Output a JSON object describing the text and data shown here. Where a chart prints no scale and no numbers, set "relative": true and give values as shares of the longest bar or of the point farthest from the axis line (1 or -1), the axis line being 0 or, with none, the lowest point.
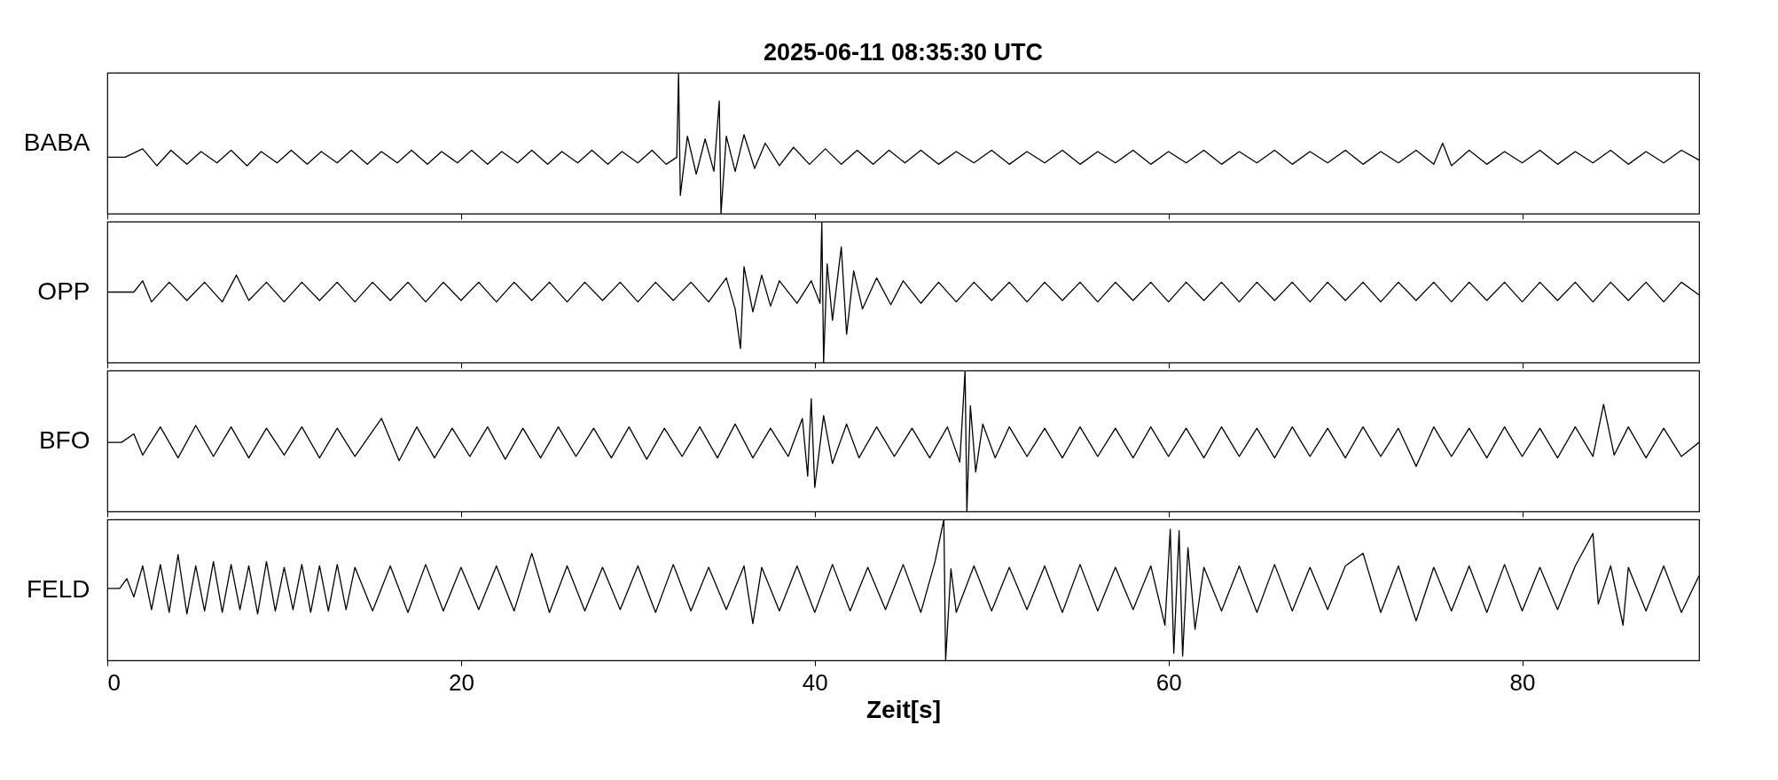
{
  "chart_data": [
    {
      "type": "line",
      "title": "2025-06-11  08:35:30 UTC",
      "ylabel": "BABA",
      "relative": true,
      "color": "#000000",
      "xlim": [
        0,
        90
      ],
      "xticks": [
        0,
        20,
        40,
        60,
        80
      ],
      "tick_labels": false,
      "x": [
        0,
        1,
        2,
        2.8,
        3.6,
        4.5,
        5.3,
        6.2,
        7,
        7.9,
        8.7,
        9.6,
        10.4,
        11.3,
        12.1,
        13,
        13.8,
        14.7,
        15.5,
        16.4,
        17.2,
        18.1,
        18.9,
        19.8,
        20.6,
        21.5,
        22.3,
        23.2,
        24,
        24.9,
        25.7,
        26.6,
        27.4,
        28.3,
        29.1,
        30,
        30.8,
        31.6,
        32.2,
        32.3,
        32.4,
        32.8,
        33.3,
        33.8,
        34.3,
        34.6,
        34.7,
        35,
        35.5,
        36,
        36.6,
        37.2,
        38,
        38.8,
        39.7,
        40.6,
        41.5,
        42.4,
        43.3,
        44.2,
        45.1,
        46,
        47,
        48,
        49,
        50,
        51,
        52,
        53,
        54,
        55,
        56,
        57,
        58,
        59,
        60,
        61,
        62,
        63,
        64,
        65,
        66,
        67,
        68,
        69,
        70,
        71,
        72,
        73,
        74,
        75,
        75.5,
        76,
        77,
        78,
        79,
        80,
        81,
        82,
        83,
        84,
        85,
        86,
        87,
        88,
        89,
        90
      ],
      "values": [
        0.4,
        0.4,
        0.46,
        0.34,
        0.45,
        0.35,
        0.44,
        0.36,
        0.45,
        0.34,
        0.44,
        0.36,
        0.45,
        0.35,
        0.44,
        0.36,
        0.45,
        0.35,
        0.44,
        0.36,
        0.45,
        0.35,
        0.44,
        0.36,
        0.45,
        0.35,
        0.44,
        0.36,
        0.45,
        0.35,
        0.44,
        0.36,
        0.45,
        0.35,
        0.44,
        0.36,
        0.45,
        0.35,
        0.4,
        1.0,
        0.13,
        0.55,
        0.28,
        0.53,
        0.3,
        0.8,
        0,
        0.55,
        0.3,
        0.56,
        0.32,
        0.5,
        0.34,
        0.47,
        0.35,
        0.46,
        0.35,
        0.45,
        0.35,
        0.45,
        0.36,
        0.45,
        0.35,
        0.44,
        0.36,
        0.45,
        0.35,
        0.44,
        0.36,
        0.45,
        0.35,
        0.44,
        0.36,
        0.45,
        0.35,
        0.44,
        0.36,
        0.45,
        0.35,
        0.44,
        0.36,
        0.45,
        0.35,
        0.44,
        0.36,
        0.45,
        0.35,
        0.44,
        0.36,
        0.45,
        0.35,
        0.5,
        0.34,
        0.45,
        0.35,
        0.44,
        0.36,
        0.45,
        0.35,
        0.44,
        0.36,
        0.45,
        0.35,
        0.44,
        0.36,
        0.45,
        0.38
      ]
    },
    {
      "type": "line",
      "ylabel": "OPP",
      "relative": true,
      "color": "#000000",
      "xlim": [
        0,
        90
      ],
      "xticks": [
        0,
        20,
        40,
        60,
        80
      ],
      "tick_labels": false,
      "x": [
        0,
        1,
        1.5,
        2,
        2.5,
        3.5,
        4.5,
        5.5,
        6.5,
        7.3,
        8,
        9,
        10,
        11,
        12,
        13,
        14,
        15,
        16,
        17,
        18,
        19,
        20,
        21,
        22,
        23,
        24,
        25,
        26,
        27,
        28,
        29,
        30,
        31,
        32,
        33,
        34,
        35,
        35.5,
        35.8,
        36,
        36.5,
        37,
        37.5,
        38,
        39,
        39.8,
        40.3,
        40.4,
        40.5,
        40.7,
        41,
        41.5,
        41.8,
        42.2,
        42.7,
        43.5,
        44.3,
        45,
        46,
        47,
        48,
        49,
        50,
        51,
        52,
        53,
        54,
        55,
        56,
        57,
        58,
        59,
        60,
        61,
        62,
        63,
        64,
        65,
        66,
        67,
        68,
        69,
        70,
        71,
        72,
        73,
        74,
        75,
        76,
        77,
        78,
        79,
        80,
        81,
        82,
        83,
        84,
        85,
        86,
        87,
        88,
        89,
        90
      ],
      "values": [
        0.5,
        0.5,
        0.5,
        0.58,
        0.43,
        0.57,
        0.44,
        0.57,
        0.43,
        0.62,
        0.44,
        0.57,
        0.43,
        0.57,
        0.44,
        0.57,
        0.43,
        0.57,
        0.44,
        0.57,
        0.43,
        0.57,
        0.44,
        0.57,
        0.43,
        0.57,
        0.44,
        0.57,
        0.43,
        0.57,
        0.44,
        0.57,
        0.43,
        0.57,
        0.44,
        0.57,
        0.43,
        0.6,
        0.38,
        0.1,
        0.68,
        0.36,
        0.62,
        0.4,
        0.58,
        0.42,
        0.58,
        0.42,
        1.0,
        0,
        0.7,
        0.3,
        0.82,
        0.2,
        0.65,
        0.38,
        0.6,
        0.41,
        0.58,
        0.42,
        0.57,
        0.43,
        0.57,
        0.44,
        0.57,
        0.43,
        0.57,
        0.44,
        0.57,
        0.43,
        0.57,
        0.44,
        0.57,
        0.43,
        0.57,
        0.44,
        0.57,
        0.43,
        0.57,
        0.44,
        0.57,
        0.43,
        0.57,
        0.44,
        0.57,
        0.43,
        0.57,
        0.44,
        0.57,
        0.43,
        0.57,
        0.44,
        0.57,
        0.43,
        0.57,
        0.44,
        0.57,
        0.43,
        0.57,
        0.44,
        0.57,
        0.43,
        0.57,
        0.48
      ]
    },
    {
      "type": "line",
      "ylabel": "BFO",
      "relative": true,
      "color": "#000000",
      "xlim": [
        0,
        90
      ],
      "xticks": [
        0,
        20,
        40,
        60,
        80
      ],
      "tick_labels": false,
      "x": [
        0,
        0.8,
        1.5,
        2,
        3,
        4,
        5,
        6,
        7,
        8,
        9,
        10,
        11,
        12,
        13,
        14,
        15.5,
        16.5,
        17.5,
        18.5,
        19.5,
        20.5,
        21.5,
        22.5,
        23.5,
        24.5,
        25.5,
        26.5,
        27.5,
        28.5,
        29.5,
        30.5,
        31.5,
        32.5,
        33.5,
        34.5,
        35.5,
        36.5,
        37.5,
        38.5,
        39.3,
        39.6,
        39.8,
        40,
        40.5,
        41,
        41.8,
        42.5,
        43.5,
        44.5,
        45.5,
        46.5,
        47.5,
        48.2,
        48.5,
        48.6,
        48.8,
        49.1,
        49.5,
        50.2,
        51,
        52,
        53,
        54,
        55,
        56,
        57,
        58,
        59,
        60,
        61,
        62,
        63,
        64,
        65,
        66,
        67,
        68,
        69,
        70,
        71,
        72,
        73,
        74,
        75,
        76,
        77,
        78,
        79,
        80,
        81,
        82,
        83,
        84,
        84.6,
        85.2,
        86,
        87,
        88,
        89,
        90
      ],
      "values": [
        0.49,
        0.49,
        0.55,
        0.4,
        0.6,
        0.38,
        0.61,
        0.39,
        0.6,
        0.38,
        0.59,
        0.4,
        0.6,
        0.38,
        0.59,
        0.39,
        0.66,
        0.36,
        0.6,
        0.38,
        0.59,
        0.39,
        0.6,
        0.37,
        0.59,
        0.38,
        0.6,
        0.39,
        0.59,
        0.38,
        0.6,
        0.37,
        0.59,
        0.39,
        0.6,
        0.38,
        0.62,
        0.38,
        0.59,
        0.39,
        0.66,
        0.25,
        0.8,
        0.17,
        0.68,
        0.34,
        0.62,
        0.38,
        0.6,
        0.39,
        0.59,
        0.38,
        0.6,
        0.35,
        1.0,
        0,
        0.75,
        0.28,
        0.62,
        0.38,
        0.6,
        0.39,
        0.59,
        0.38,
        0.6,
        0.39,
        0.59,
        0.38,
        0.6,
        0.39,
        0.59,
        0.38,
        0.6,
        0.39,
        0.59,
        0.38,
        0.6,
        0.39,
        0.59,
        0.38,
        0.6,
        0.39,
        0.59,
        0.32,
        0.6,
        0.39,
        0.59,
        0.38,
        0.6,
        0.39,
        0.59,
        0.38,
        0.6,
        0.39,
        0.76,
        0.4,
        0.6,
        0.38,
        0.59,
        0.39,
        0.49
      ]
    },
    {
      "type": "line",
      "ylabel": "FELD",
      "xlabel": "Zeit[s]",
      "relative": true,
      "color": "#000000",
      "xlim": [
        0,
        90
      ],
      "xticks": [
        0,
        20,
        40,
        60,
        80
      ],
      "tick_labels": "x",
      "x": [
        0,
        0.7,
        1.1,
        1.5,
        2,
        2.5,
        3,
        3.5,
        4,
        4.5,
        5,
        5.5,
        6,
        6.5,
        7,
        7.5,
        8,
        8.5,
        9,
        9.5,
        10,
        10.5,
        11,
        11.5,
        12,
        12.5,
        13,
        13.5,
        14,
        15,
        16,
        17,
        18,
        19,
        20,
        21,
        22,
        23,
        24,
        25,
        26,
        27,
        28,
        29,
        30,
        31,
        32,
        33,
        34,
        35,
        36,
        36.5,
        37,
        38,
        39,
        40,
        41,
        42,
        43,
        44,
        45,
        46,
        46.8,
        47.3,
        47.4,
        47.7,
        48,
        49,
        50,
        51,
        52,
        53,
        54,
        55,
        56,
        57,
        58,
        59,
        59.8,
        60.1,
        60.3,
        60.6,
        60.8,
        61.1,
        61.5,
        62,
        63,
        64,
        65,
        66,
        67,
        68,
        69,
        70,
        71,
        72,
        73,
        74,
        75,
        76,
        77,
        78,
        79,
        80,
        81,
        82,
        83,
        84,
        84.3,
        85,
        85.7,
        86,
        87,
        88,
        89,
        90
      ],
      "values": [
        0.51,
        0.51,
        0.58,
        0.45,
        0.67,
        0.36,
        0.68,
        0.34,
        0.75,
        0.33,
        0.67,
        0.35,
        0.7,
        0.34,
        0.68,
        0.36,
        0.67,
        0.33,
        0.7,
        0.35,
        0.66,
        0.36,
        0.68,
        0.34,
        0.67,
        0.35,
        0.68,
        0.36,
        0.66,
        0.35,
        0.67,
        0.34,
        0.68,
        0.35,
        0.66,
        0.36,
        0.67,
        0.35,
        0.76,
        0.34,
        0.67,
        0.35,
        0.66,
        0.36,
        0.67,
        0.34,
        0.68,
        0.35,
        0.66,
        0.36,
        0.67,
        0.26,
        0.66,
        0.35,
        0.67,
        0.34,
        0.68,
        0.35,
        0.66,
        0.36,
        0.68,
        0.34,
        0.7,
        1.0,
        0,
        0.65,
        0.34,
        0.67,
        0.35,
        0.66,
        0.36,
        0.67,
        0.34,
        0.68,
        0.35,
        0.66,
        0.36,
        0.67,
        0.25,
        0.93,
        0.05,
        0.92,
        0.03,
        0.8,
        0.22,
        0.66,
        0.35,
        0.67,
        0.34,
        0.68,
        0.35,
        0.66,
        0.36,
        0.67,
        0.76,
        0.34,
        0.67,
        0.28,
        0.66,
        0.35,
        0.67,
        0.34,
        0.68,
        0.35,
        0.66,
        0.36,
        0.67,
        0.9,
        0.4,
        0.67,
        0.25,
        0.66,
        0.35,
        0.67,
        0.34,
        0.6
      ]
    }
  ]
}
